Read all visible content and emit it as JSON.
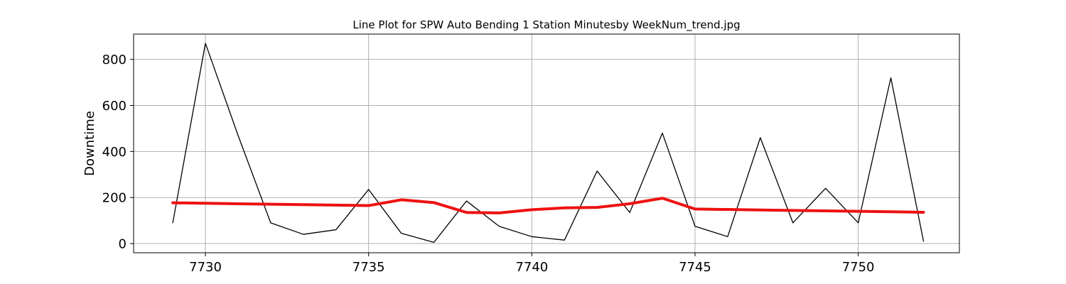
{
  "chart_data": {
    "type": "line",
    "title": "Line Plot for SPW Auto Bending 1 Station Minutesby WeekNum_trend.jpg",
    "xlabel": "",
    "ylabel": "Downtime",
    "xlim": [
      7727.8,
      7753.1
    ],
    "ylim": [
      -40,
      910
    ],
    "xticks": [
      7730,
      7735,
      7740,
      7745,
      7750
    ],
    "yticks": [
      0,
      200,
      400,
      600,
      800
    ],
    "grid": true,
    "x": [
      7729,
      7730,
      7731,
      7732,
      7733,
      7734,
      7735,
      7736,
      7737,
      7738,
      7739,
      7740,
      7741,
      7742,
      7743,
      7744,
      7745,
      7746,
      7747,
      7748,
      7749,
      7750,
      7751,
      7752
    ],
    "series": [
      {
        "name": "",
        "color": "#000000",
        "values": [
          90,
          870,
          470,
          90,
          40,
          60,
          235,
          45,
          5,
          185,
          75,
          30,
          15,
          315,
          135,
          480,
          75,
          30,
          460,
          90,
          240,
          90,
          720,
          10
        ]
      },
      {
        "name": "",
        "color": "#ee1111",
        "values": [
          177,
          175,
          173,
          171,
          169,
          167,
          165,
          190,
          178,
          135,
          133,
          147,
          155,
          157,
          173,
          197,
          150,
          148,
          146,
          144,
          142,
          140,
          138,
          136
        ]
      }
    ]
  }
}
